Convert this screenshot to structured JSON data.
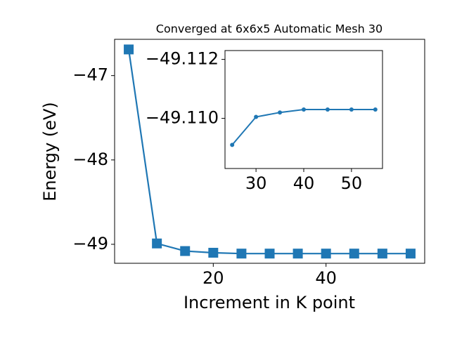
{
  "chart_data": [
    {
      "type": "line",
      "title": "Converged at 6x6x5 Automatic Mesh 30",
      "x_label": "Increment in K point",
      "y_label": "Energy (eV)",
      "x": [
        5,
        10,
        15,
        20,
        25,
        30,
        35,
        40,
        45,
        50,
        55
      ],
      "series": [
        {
          "color": "#1f77b4",
          "marker": "square",
          "values": [
            -46.69,
            -48.99,
            -49.08,
            -49.1,
            -49.11,
            -49.11,
            -49.11,
            -49.11,
            -49.11,
            -49.11,
            -49.11
          ]
        }
      ],
      "xlim": [
        2.5,
        57.5
      ],
      "ylim": [
        -49.225,
        -46.57
      ],
      "xticks": [
        20,
        40
      ],
      "yticks": [
        {
          "value": -49,
          "label": "−49"
        },
        {
          "value": -48,
          "label": "−48"
        },
        {
          "value": -47,
          "label": "−47"
        }
      ]
    },
    {
      "type": "line",
      "x": [
        25,
        30,
        35,
        40,
        45,
        50,
        55
      ],
      "series": [
        {
          "color": "#1f77b4",
          "marker": "circle",
          "values": [
            -49.1091,
            -49.11005,
            -49.1102,
            -49.1103,
            -49.1103,
            -49.1103,
            -49.1103
          ]
        }
      ],
      "xlim": [
        23.5,
        56.5
      ],
      "ylim": [
        -49.1083,
        -49.1123
      ],
      "xticks": [
        30,
        40,
        50
      ],
      "yticks": [
        {
          "value": -49.11,
          "label": "−49.110"
        },
        {
          "value": -49.112,
          "label": "−49.112"
        }
      ]
    }
  ]
}
